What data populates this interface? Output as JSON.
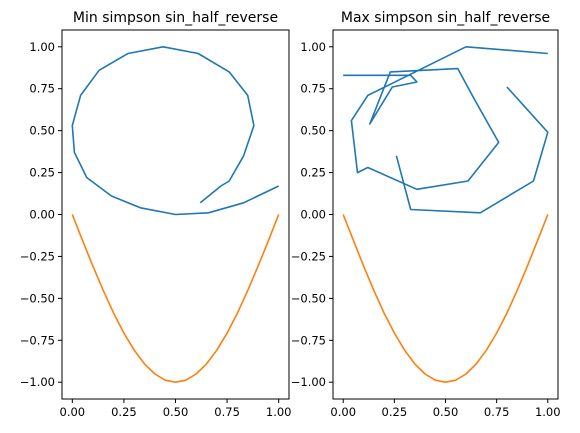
{
  "chart_data": [
    {
      "type": "line",
      "title": "Min simpson sin_half_reverse",
      "xlim": [
        -0.05,
        1.05
      ],
      "ylim": [
        -1.1,
        1.1
      ],
      "xticks": [
        0.0,
        0.25,
        0.5,
        0.75,
        1.0
      ],
      "xtick_labels": [
        "0.00",
        "0.25",
        "0.50",
        "0.75",
        "1.00"
      ],
      "yticks": [
        -1.0,
        -0.75,
        -0.5,
        -0.25,
        0.0,
        0.25,
        0.5,
        0.75,
        1.0
      ],
      "ytick_labels": [
        "−1.00",
        "−0.75",
        "−0.50",
        "−0.25",
        "0.00",
        "0.25",
        "0.50",
        "0.75",
        "1.00"
      ],
      "series": [
        {
          "color": "#1f77b4",
          "points": [
            [
              0.62,
              0.07
            ],
            [
              0.67,
              0.12
            ],
            [
              0.72,
              0.17
            ],
            [
              0.76,
              0.2
            ],
            [
              0.83,
              0.35
            ],
            [
              0.88,
              0.53
            ],
            [
              0.85,
              0.71
            ],
            [
              0.76,
              0.85
            ],
            [
              0.61,
              0.96
            ],
            [
              0.44,
              1.0
            ],
            [
              0.27,
              0.96
            ],
            [
              0.13,
              0.86
            ],
            [
              0.04,
              0.71
            ],
            [
              0.0,
              0.53
            ],
            [
              0.01,
              0.37
            ],
            [
              0.07,
              0.22
            ],
            [
              0.19,
              0.11
            ],
            [
              0.33,
              0.04
            ],
            [
              0.5,
              0.0
            ],
            [
              0.66,
              0.01
            ],
            [
              0.83,
              0.07
            ],
            [
              1.0,
              0.17
            ]
          ]
        },
        {
          "color": "#ff7f0e",
          "points": [
            [
              0.0,
              0.0
            ],
            [
              0.05,
              -0.156
            ],
            [
              0.1,
              -0.309
            ],
            [
              0.15,
              -0.454
            ],
            [
              0.2,
              -0.588
            ],
            [
              0.25,
              -0.707
            ],
            [
              0.3,
              -0.809
            ],
            [
              0.35,
              -0.891
            ],
            [
              0.4,
              -0.951
            ],
            [
              0.45,
              -0.988
            ],
            [
              0.5,
              -1.0
            ],
            [
              0.55,
              -0.988
            ],
            [
              0.6,
              -0.951
            ],
            [
              0.65,
              -0.891
            ],
            [
              0.7,
              -0.809
            ],
            [
              0.75,
              -0.707
            ],
            [
              0.8,
              -0.588
            ],
            [
              0.85,
              -0.454
            ],
            [
              0.9,
              -0.309
            ],
            [
              0.95,
              -0.156
            ],
            [
              1.0,
              0.0
            ]
          ]
        }
      ]
    },
    {
      "type": "line",
      "title": "Max simpson sin_half_reverse",
      "xlim": [
        -0.05,
        1.05
      ],
      "ylim": [
        -1.1,
        1.1
      ],
      "xticks": [
        0.0,
        0.25,
        0.5,
        0.75,
        1.0
      ],
      "xtick_labels": [
        "0.00",
        "0.25",
        "0.50",
        "0.75",
        "1.00"
      ],
      "yticks": [
        -1.0,
        -0.75,
        -0.5,
        -0.25,
        0.0,
        0.25,
        0.5,
        0.75,
        1.0
      ],
      "ytick_labels": [
        "−1.00",
        "−0.75",
        "−0.50",
        "−0.25",
        "0.00",
        "0.25",
        "0.50",
        "0.75",
        "1.00"
      ],
      "series": [
        {
          "color": "#1f77b4",
          "points": [
            [
              0.0,
              0.83
            ],
            [
              0.33,
              0.83
            ],
            [
              0.36,
              0.79
            ],
            [
              0.24,
              0.76
            ],
            [
              0.13,
              0.54
            ],
            [
              0.23,
              0.85
            ],
            [
              0.56,
              0.87
            ],
            [
              0.64,
              0.69
            ],
            [
              0.76,
              0.43
            ],
            [
              0.61,
              0.2
            ],
            [
              0.36,
              0.15
            ],
            [
              0.12,
              0.28
            ],
            [
              0.07,
              0.25
            ],
            [
              0.04,
              0.56
            ],
            [
              0.12,
              0.71
            ],
            [
              0.6,
              1.0
            ],
            [
              1.0,
              0.96
            ]
          ]
        },
        {
          "color": "#1f77b4",
          "points": [
            [
              0.8,
              0.76
            ],
            [
              1.0,
              0.49
            ],
            [
              0.93,
              0.2
            ],
            [
              0.67,
              0.01
            ],
            [
              0.33,
              0.03
            ],
            [
              0.26,
              0.35
            ]
          ]
        },
        {
          "color": "#ff7f0e",
          "points": [
            [
              0.0,
              0.0
            ],
            [
              0.05,
              -0.156
            ],
            [
              0.1,
              -0.309
            ],
            [
              0.15,
              -0.454
            ],
            [
              0.2,
              -0.588
            ],
            [
              0.25,
              -0.707
            ],
            [
              0.3,
              -0.809
            ],
            [
              0.35,
              -0.891
            ],
            [
              0.4,
              -0.951
            ],
            [
              0.45,
              -0.988
            ],
            [
              0.5,
              -1.0
            ],
            [
              0.55,
              -0.988
            ],
            [
              0.6,
              -0.951
            ],
            [
              0.65,
              -0.891
            ],
            [
              0.7,
              -0.809
            ],
            [
              0.75,
              -0.707
            ],
            [
              0.8,
              -0.588
            ],
            [
              0.85,
              -0.454
            ],
            [
              0.9,
              -0.309
            ],
            [
              0.95,
              -0.156
            ],
            [
              1.0,
              0.0
            ]
          ]
        }
      ]
    }
  ]
}
